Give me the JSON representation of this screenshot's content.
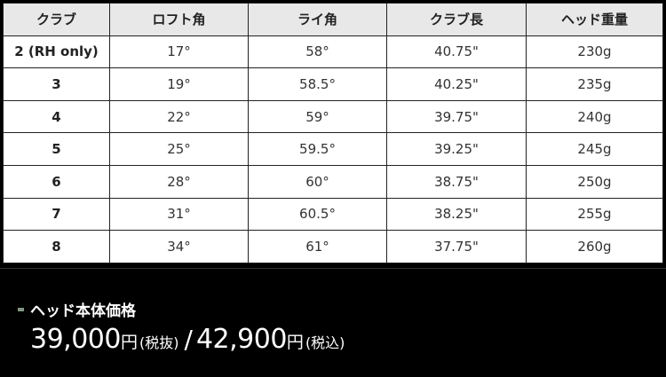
{
  "table": {
    "headers": [
      "クラブ",
      "ロフト角",
      "ライ角",
      "クラブ長",
      "ヘッド重量"
    ],
    "rows": [
      [
        "2 (RH only)",
        "17°",
        "58°",
        "40.75\"",
        "230g"
      ],
      [
        "3",
        "19°",
        "58.5°",
        "40.25\"",
        "235g"
      ],
      [
        "4",
        "22°",
        "59°",
        "39.75\"",
        "240g"
      ],
      [
        "5",
        "25°",
        "59.5°",
        "39.25\"",
        "245g"
      ],
      [
        "6",
        "28°",
        "60°",
        "38.75\"",
        "250g"
      ],
      [
        "7",
        "31°",
        "60.5°",
        "38.25\"",
        "255g"
      ],
      [
        "8",
        "34°",
        "61°",
        "37.75\"",
        "260g"
      ]
    ]
  },
  "price": {
    "label": "ヘッド本体価格",
    "accent_color": "#7f9a80",
    "excl_amount": "39,000",
    "yen": "円",
    "excl_note": "(税抜)",
    "slash": "/",
    "incl_amount": "42,900",
    "incl_note": "(税込)"
  }
}
